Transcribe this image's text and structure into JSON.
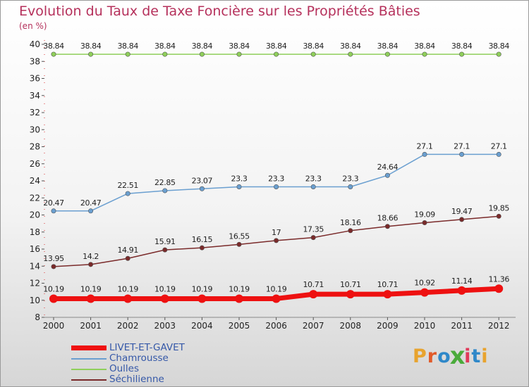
{
  "title": "Evolution du Taux de Taxe Foncière sur les Propriétés Bâties",
  "unit_label": "(en %)",
  "logo": {
    "letters": [
      "P",
      "r",
      "o",
      "x",
      "i",
      "t",
      "i"
    ],
    "colors": [
      "#e8a32e",
      "#e15b2a",
      "#2f88c9",
      "#4aab3b",
      "#e03a5a",
      "#2f88c9",
      "#e8a32e"
    ]
  },
  "chart_data": {
    "type": "line",
    "title": "Evolution du Taux de Taxe Foncière sur les Propriétés Bâties",
    "ylabel": "(en %)",
    "xlabel": "",
    "x": [
      "2000",
      "2001",
      "2002",
      "2003",
      "2004",
      "2005",
      "2006",
      "2007",
      "2008",
      "2009",
      "2010",
      "2011",
      "2012"
    ],
    "ylim": [
      8,
      40
    ],
    "yticks": [
      8,
      10,
      12,
      14,
      16,
      18,
      20,
      22,
      24,
      26,
      28,
      30,
      32,
      34,
      36,
      38,
      40
    ],
    "legend_position": "bottom-left",
    "series": [
      {
        "name": "LIVET-ET-GAVET",
        "color": "#ee1111",
        "values": [
          10.19,
          10.19,
          10.19,
          10.19,
          10.19,
          10.19,
          10.19,
          10.71,
          10.71,
          10.71,
          10.92,
          11.14,
          11.36
        ],
        "labels": [
          "10.19",
          "10.19",
          "10.19",
          "10.19",
          "10.19",
          "10.19",
          "10.19",
          "10.71",
          "10.71",
          "10.71",
          "10.92",
          "11.14",
          "11.36"
        ]
      },
      {
        "name": "Chamrousse",
        "color": "#6a9fd0",
        "values": [
          20.47,
          20.47,
          22.51,
          22.85,
          23.07,
          23.3,
          23.3,
          23.3,
          23.3,
          24.64,
          27.1,
          27.1,
          27.1
        ],
        "labels": [
          "20.47",
          "20.47",
          "22.51",
          "22.85",
          "23.07",
          "23.3",
          "23.3",
          "23.3",
          "23.3",
          "24.64",
          "27.1",
          "27.1",
          "27.1"
        ]
      },
      {
        "name": "Oulles",
        "color": "#8fcf5a",
        "values": [
          38.84,
          38.84,
          38.84,
          38.84,
          38.84,
          38.84,
          38.84,
          38.84,
          38.84,
          38.84,
          38.84,
          38.84,
          38.84
        ],
        "labels": [
          "38.84",
          "38.84",
          "38.84",
          "38.84",
          "38.84",
          "38.84",
          "38.84",
          "38.84",
          "38.84",
          "38.84",
          "38.84",
          "38.84",
          "38.84"
        ]
      },
      {
        "name": "Séchilienne",
        "color": "#7a2a2a",
        "values": [
          13.95,
          14.2,
          14.91,
          15.91,
          16.15,
          16.55,
          17,
          17.35,
          18.16,
          18.66,
          19.09,
          19.47,
          19.85
        ],
        "labels": [
          "13.95",
          "14.2",
          "14.91",
          "15.91",
          "16.15",
          "16.55",
          "17",
          "17.35",
          "18.16",
          "18.66",
          "19.09",
          "19.47",
          "19.85"
        ]
      }
    ]
  }
}
